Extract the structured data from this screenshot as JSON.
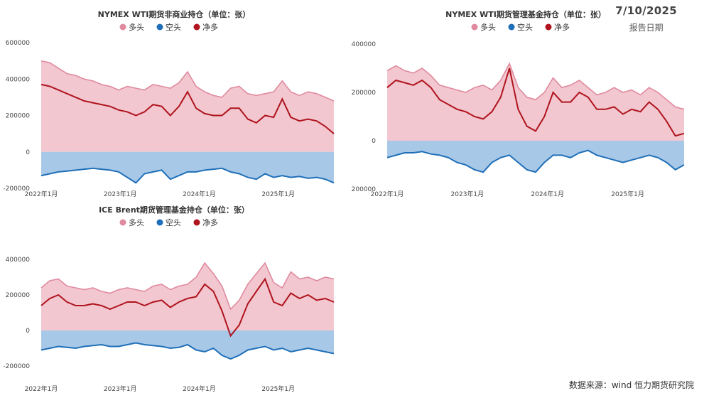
{
  "report": {
    "date": "7/10/2025",
    "date_label": "报告日期"
  },
  "source": "数据来源：wind  恒力期货研究院",
  "colors": {
    "long_fill": "#f2c7cf",
    "long_line": "#e08a9f",
    "short_fill": "#a8c8e8",
    "short_line": "#1f6fb8",
    "net_line": "#b0141e"
  },
  "chart_data": [
    {
      "type": "area",
      "title": "NYMEX WTI期货非商业持仓（单位：张）",
      "legend": [
        "多头",
        "空头",
        "净多"
      ],
      "x_ticks": [
        "2022年1月",
        "2023年1月",
        "2024年1月",
        "2025年1月"
      ],
      "y_ticks": [
        "600000",
        "400000",
        "200000",
        "0",
        "-200000"
      ],
      "ylim": [
        -200000,
        600000
      ],
      "series": [
        {
          "name": "多头",
          "values": [
            500000,
            490000,
            460000,
            430000,
            420000,
            400000,
            390000,
            370000,
            360000,
            340000,
            360000,
            350000,
            340000,
            370000,
            360000,
            350000,
            380000,
            440000,
            360000,
            330000,
            310000,
            300000,
            350000,
            360000,
            320000,
            310000,
            320000,
            330000,
            390000,
            330000,
            310000,
            330000,
            320000,
            300000,
            280000
          ]
        },
        {
          "name": "空头",
          "values": [
            -130000,
            -120000,
            -110000,
            -105000,
            -100000,
            -95000,
            -90000,
            -95000,
            -100000,
            -110000,
            -140000,
            -170000,
            -120000,
            -110000,
            -100000,
            -150000,
            -130000,
            -110000,
            -110000,
            -100000,
            -95000,
            -90000,
            -110000,
            -120000,
            -140000,
            -150000,
            -120000,
            -140000,
            -130000,
            -140000,
            -135000,
            -145000,
            -140000,
            -150000,
            -170000
          ]
        },
        {
          "name": "净多",
          "values": [
            370000,
            360000,
            340000,
            320000,
            300000,
            280000,
            270000,
            260000,
            250000,
            230000,
            220000,
            200000,
            220000,
            260000,
            250000,
            200000,
            250000,
            330000,
            240000,
            210000,
            200000,
            200000,
            240000,
            240000,
            180000,
            160000,
            200000,
            190000,
            290000,
            190000,
            170000,
            180000,
            170000,
            140000,
            100000
          ]
        }
      ]
    },
    {
      "type": "area",
      "title": "NYMEX WTI期货管理基金持仓（单位：张）",
      "legend": [
        "多头",
        "空头",
        "净多"
      ],
      "x_ticks": [
        "2022年1月",
        "2023年1月",
        "2024年1月",
        "2025年1月"
      ],
      "y_ticks": [
        "400000",
        "200000",
        "0",
        "-200000"
      ],
      "ylim": [
        -200000,
        400000
      ],
      "series": [
        {
          "name": "多头",
          "values": [
            290000,
            310000,
            290000,
            280000,
            300000,
            270000,
            230000,
            220000,
            210000,
            200000,
            220000,
            230000,
            210000,
            250000,
            320000,
            220000,
            180000,
            170000,
            200000,
            260000,
            220000,
            230000,
            250000,
            220000,
            190000,
            200000,
            220000,
            200000,
            210000,
            190000,
            220000,
            200000,
            170000,
            140000,
            130000
          ]
        },
        {
          "name": "空头",
          "values": [
            -70000,
            -60000,
            -50000,
            -50000,
            -45000,
            -55000,
            -60000,
            -70000,
            -90000,
            -100000,
            -120000,
            -130000,
            -90000,
            -70000,
            -60000,
            -90000,
            -120000,
            -130000,
            -90000,
            -60000,
            -60000,
            -70000,
            -50000,
            -40000,
            -60000,
            -70000,
            -80000,
            -90000,
            -80000,
            -70000,
            -60000,
            -70000,
            -90000,
            -120000,
            -100000
          ]
        },
        {
          "name": "净多",
          "values": [
            220000,
            250000,
            240000,
            230000,
            250000,
            220000,
            170000,
            150000,
            130000,
            120000,
            100000,
            90000,
            120000,
            180000,
            300000,
            130000,
            60000,
            40000,
            100000,
            200000,
            160000,
            160000,
            200000,
            180000,
            130000,
            130000,
            140000,
            110000,
            130000,
            120000,
            160000,
            130000,
            80000,
            20000,
            30000
          ]
        }
      ]
    },
    {
      "type": "area",
      "title": "ICE Brent期货管理基金持仓（单位：张）",
      "legend": [
        "多头",
        "空头",
        "净多"
      ],
      "x_ticks": [
        "2022年1月",
        "2023年1月",
        "2024年1月",
        "2025年1月"
      ],
      "y_ticks": [
        "400000",
        "200000",
        "0",
        "-200000"
      ],
      "ylim": [
        -200000,
        400000
      ],
      "series": [
        {
          "name": "多头",
          "values": [
            240000,
            280000,
            290000,
            250000,
            240000,
            230000,
            240000,
            220000,
            210000,
            230000,
            240000,
            230000,
            220000,
            250000,
            260000,
            230000,
            250000,
            260000,
            300000,
            380000,
            320000,
            250000,
            120000,
            170000,
            260000,
            320000,
            380000,
            270000,
            240000,
            330000,
            290000,
            300000,
            280000,
            300000,
            290000
          ]
        },
        {
          "name": "空头",
          "values": [
            -110000,
            -100000,
            -90000,
            -95000,
            -100000,
            -90000,
            -85000,
            -80000,
            -90000,
            -90000,
            -80000,
            -70000,
            -80000,
            -85000,
            -90000,
            -100000,
            -95000,
            -80000,
            -110000,
            -120000,
            -100000,
            -140000,
            -160000,
            -140000,
            -110000,
            -100000,
            -90000,
            -110000,
            -100000,
            -120000,
            -110000,
            -100000,
            -110000,
            -120000,
            -130000
          ]
        },
        {
          "name": "净多",
          "values": [
            140000,
            180000,
            200000,
            160000,
            140000,
            140000,
            150000,
            140000,
            120000,
            140000,
            160000,
            160000,
            140000,
            160000,
            170000,
            130000,
            160000,
            180000,
            190000,
            260000,
            220000,
            110000,
            -30000,
            30000,
            150000,
            220000,
            290000,
            160000,
            140000,
            210000,
            180000,
            200000,
            170000,
            180000,
            160000
          ]
        }
      ]
    }
  ]
}
